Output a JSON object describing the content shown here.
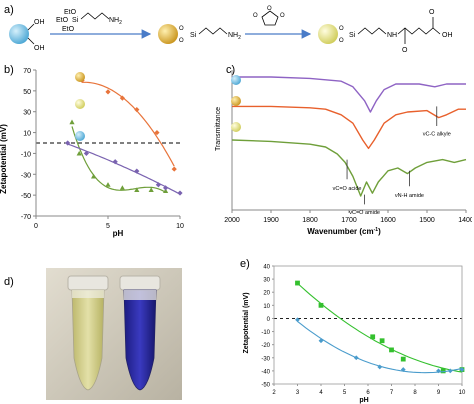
{
  "panels": {
    "a": "a)",
    "b": "b)",
    "c": "c)",
    "d": "d)",
    "e": "e)"
  },
  "scheme": {
    "hydroxyl_label": "OH",
    "reagent_etos": [
      "EtO",
      "EtO",
      "EtO"
    ],
    "silicon": "Si",
    "amine": "NH",
    "amine_sub": "2",
    "anhydride_o": "O",
    "amide_nh": "NH",
    "amide_o": "O",
    "acid_oh": "OH"
  },
  "chart_b": {
    "chart_data": {
      "type": "scatter",
      "xlabel": "pH",
      "ylabel": "Zetapotential (mV)",
      "xlim": [
        0,
        10
      ],
      "ylim": [
        -70,
        70
      ],
      "xticks": [
        0,
        5,
        10
      ],
      "yticks": [
        70,
        50,
        30,
        10,
        -10,
        -30,
        -50,
        -70
      ],
      "zero_line": 0,
      "series": [
        {
          "color": "#e8743b",
          "marker": "diamond",
          "x": [
            3.2,
            5.0,
            6.0,
            7.0,
            8.4,
            9.6
          ],
          "y": [
            60,
            49,
            43,
            32,
            10,
            -25
          ]
        },
        {
          "color": "#6f9f3a",
          "marker": "triangle",
          "x": [
            2.5,
            3.0,
            4.0,
            5.0,
            6.0,
            7.0,
            8.0,
            9.0
          ],
          "y": [
            20,
            -10,
            -32,
            -40,
            -43,
            -45,
            -45,
            -46
          ]
        },
        {
          "color": "#7a63b0",
          "marker": "diamond",
          "x": [
            2.2,
            3.5,
            5.5,
            7.0,
            8.5,
            9.0,
            10.0
          ],
          "y": [
            0,
            -10,
            -18,
            -27,
            -40,
            -43,
            -48
          ]
        }
      ]
    }
  },
  "chart_c": {
    "chart_data": {
      "type": "line",
      "xlabel": "Wavenumber (cm-1)",
      "xlabel_main": "Wavenumber (cm",
      "xlabel_sup": "-1",
      "xlabel_end": ")",
      "ylabel": "Transmittance",
      "xlim": [
        2000,
        1400
      ],
      "xticks": [
        2000,
        1900,
        1800,
        1700,
        1600,
        1500,
        1400
      ],
      "series": [
        {
          "color": "#8e63c4",
          "x": [
            2000,
            1900,
            1800,
            1760,
            1720,
            1690,
            1660,
            1645,
            1630,
            1610,
            1580,
            1550,
            1520,
            1480,
            1450,
            1420,
            1400
          ],
          "y": [
            0.95,
            0.95,
            0.94,
            0.93,
            0.92,
            0.88,
            0.78,
            0.7,
            0.78,
            0.86,
            0.9,
            0.9,
            0.9,
            0.88,
            0.9,
            0.9,
            0.9
          ]
        },
        {
          "color": "#e8602c",
          "x": [
            2000,
            1900,
            1800,
            1760,
            1720,
            1690,
            1665,
            1650,
            1635,
            1610,
            1580,
            1550,
            1500,
            1470,
            1450,
            1420,
            1400
          ],
          "y": [
            0.74,
            0.74,
            0.73,
            0.72,
            0.68,
            0.62,
            0.5,
            0.44,
            0.5,
            0.62,
            0.68,
            0.7,
            0.71,
            0.66,
            0.68,
            0.72,
            0.72
          ]
        },
        {
          "color": "#6f9f3a",
          "x": [
            2000,
            1900,
            1800,
            1760,
            1730,
            1710,
            1690,
            1670,
            1655,
            1640,
            1625,
            1600,
            1575,
            1550,
            1530,
            1500,
            1460,
            1430,
            1400
          ],
          "y": [
            0.5,
            0.49,
            0.47,
            0.45,
            0.4,
            0.34,
            0.24,
            0.1,
            0.2,
            0.12,
            0.2,
            0.28,
            0.3,
            0.26,
            0.3,
            0.34,
            0.36,
            0.34,
            0.36
          ]
        }
      ],
      "annotations": [
        {
          "text": "νC-C alkyle",
          "x": 1475
        },
        {
          "text": "νC=O acide",
          "x": 1705
        },
        {
          "text": "νC=O amide",
          "x": 1660
        },
        {
          "text": "νN-H amide",
          "x": 1545
        }
      ]
    }
  },
  "chart_e": {
    "chart_data": {
      "type": "scatter",
      "xlabel": "pH",
      "ylabel": "Zetapotential (mV)",
      "xlim": [
        2,
        10
      ],
      "ylim": [
        -50,
        40
      ],
      "xticks": [
        2,
        3,
        4,
        5,
        6,
        7,
        8,
        9,
        10
      ],
      "yticks": [
        40,
        30,
        20,
        10,
        0,
        -10,
        -20,
        -30,
        -40,
        -50
      ],
      "zero_line": 0,
      "series": [
        {
          "color": "#34c02e",
          "marker": "square",
          "x": [
            3.0,
            4.0,
            6.2,
            6.6,
            7.0,
            7.5,
            9.2,
            10.0
          ],
          "y": [
            27,
            10,
            -14,
            -17,
            -24,
            -31,
            -40,
            -39
          ]
        },
        {
          "color": "#4a9ccc",
          "marker": "diamond",
          "x": [
            3.0,
            4.0,
            5.5,
            6.5,
            7.5,
            9.0,
            9.5,
            10.0
          ],
          "y": [
            -1,
            -17,
            -30,
            -37,
            -39,
            -40,
            -40,
            -39
          ]
        }
      ]
    }
  },
  "colors": {
    "bead_blue": "#7fc4e8",
    "bead_gold": "#e6b83c",
    "bead_light": "#e6e48a",
    "arrow": "#4a7cc8",
    "tube_left": "#d8d68e",
    "tube_right": "#2c2ca8",
    "photo_bg": "#d2cdbd"
  }
}
